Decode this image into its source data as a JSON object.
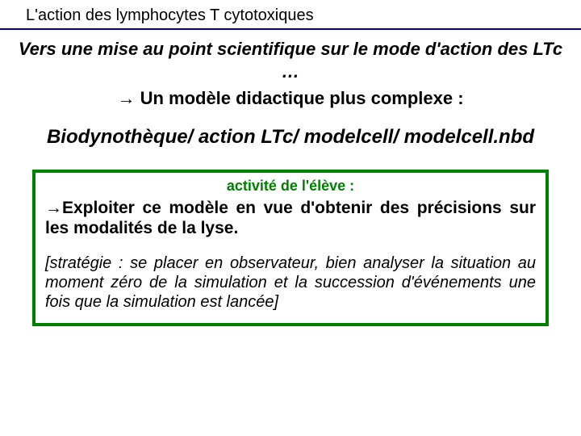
{
  "header": "L'action des lymphocytes T cytotoxiques",
  "subtitle_line1": "Vers une mise au point scientifique sur le mode d'action des LTc …",
  "subtitle_line2_arrow": "→",
  "subtitle_line2_text": " Un modèle didactique plus complexe :",
  "path": "Biodynothèque/ action LTc/ modelcell/ modelcell.nbd",
  "activity": {
    "title": "activité  de  l'élève :",
    "main_arrow": "→",
    "main_text": "Exploiter ce modèle en vue d'obtenir des précisions sur les modalités de la lyse.",
    "strategy": "[stratégie : se placer en observateur, bien analyser la situation au moment zéro de la simulation et la succession d'événements une fois que la simulation est lancée]"
  },
  "colors": {
    "underline": "#000080",
    "box_border": "#008000",
    "activity_title": "#008000",
    "text": "#000000",
    "background": "#ffffff"
  }
}
